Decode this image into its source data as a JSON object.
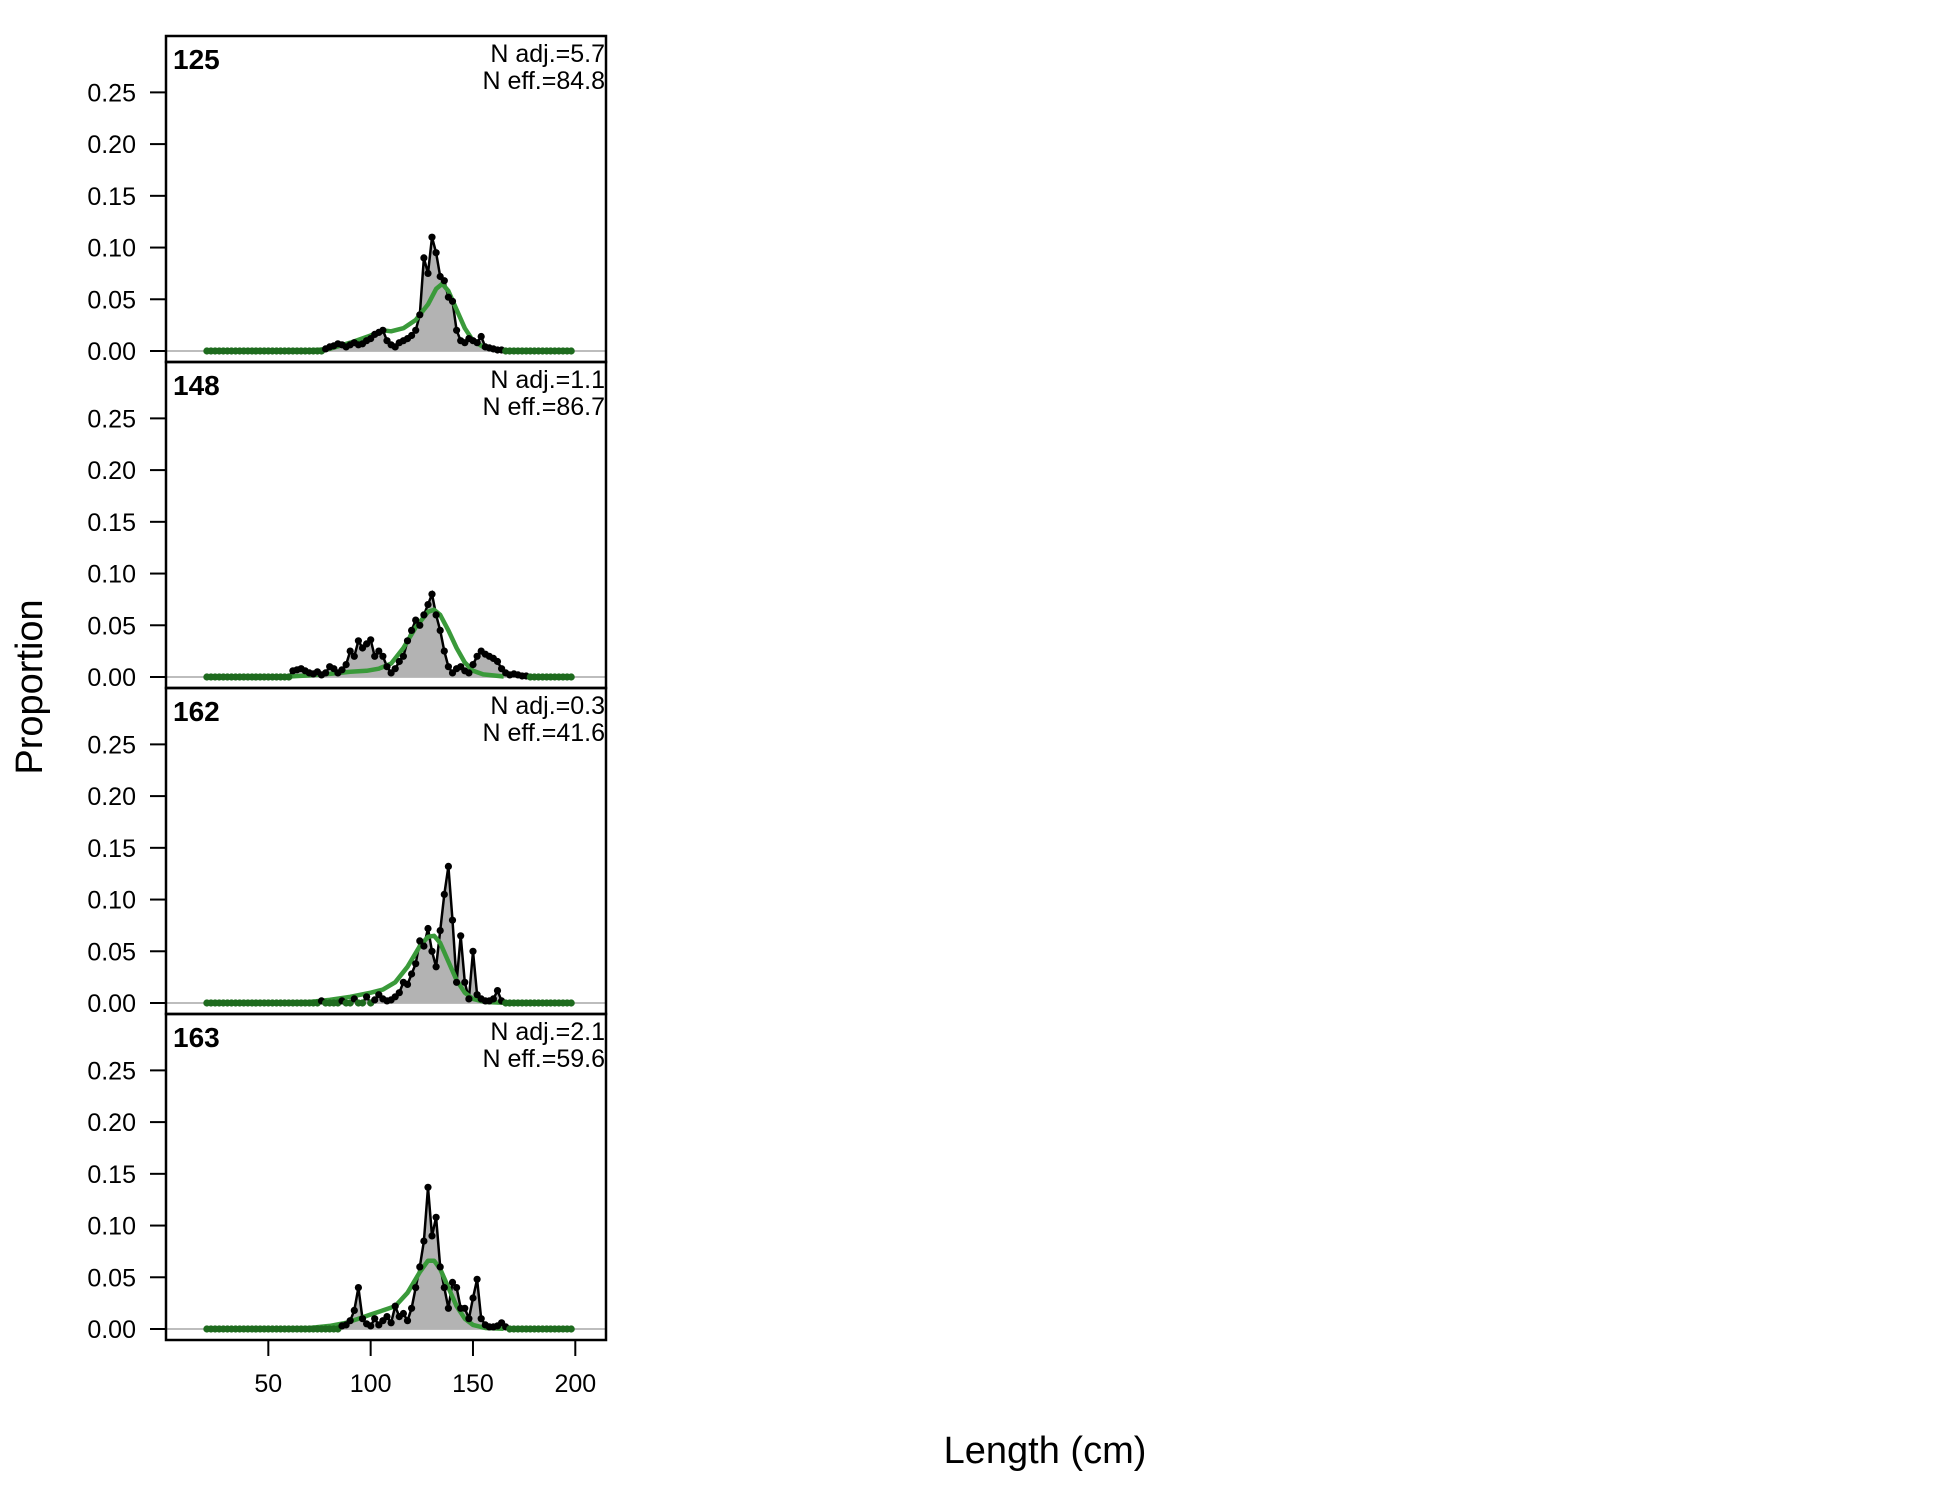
{
  "chart_data": {
    "type": "area",
    "xlabel": "Length (cm)",
    "ylabel": "Proportion",
    "xlim": [
      0,
      215
    ],
    "ylim": [
      0,
      0.29
    ],
    "x_ticks": [
      50,
      100,
      150,
      200
    ],
    "x_tick_labels": [
      "50",
      "100",
      "150",
      "200"
    ],
    "y_ticks": [
      0,
      0.05,
      0.1,
      0.15,
      0.2,
      0.25
    ],
    "y_tick_labels": [
      "0.00",
      "0.05",
      "0.10",
      "0.15",
      "0.20",
      "0.25"
    ],
    "colors": {
      "observed_line": "#000000",
      "observed_fill": "#b3b3b3",
      "expected_line": "#3a9a3a",
      "zero_line": "#bdbdbd",
      "zero_points": "#1e6b1e"
    },
    "length_bins": {
      "start": 20,
      "end": 198,
      "step": 2
    },
    "panels": [
      {
        "label": "125",
        "n_adj": "N adj.=5.7",
        "n_eff": "N eff.=84.8",
        "observed": [
          [
            78,
            0.002
          ],
          [
            80,
            0.004
          ],
          [
            82,
            0.005
          ],
          [
            84,
            0.007
          ],
          [
            86,
            0.006
          ],
          [
            88,
            0.004
          ],
          [
            90,
            0.006
          ],
          [
            92,
            0.008
          ],
          [
            94,
            0.006
          ],
          [
            96,
            0.007
          ],
          [
            98,
            0.01
          ],
          [
            100,
            0.012
          ],
          [
            102,
            0.016
          ],
          [
            104,
            0.018
          ],
          [
            106,
            0.02
          ],
          [
            108,
            0.01
          ],
          [
            110,
            0.006
          ],
          [
            112,
            0.004
          ],
          [
            114,
            0.008
          ],
          [
            116,
            0.01
          ],
          [
            118,
            0.012
          ],
          [
            120,
            0.015
          ],
          [
            122,
            0.02
          ],
          [
            124,
            0.035
          ],
          [
            126,
            0.09
          ],
          [
            128,
            0.075
          ],
          [
            130,
            0.11
          ],
          [
            132,
            0.095
          ],
          [
            134,
            0.072
          ],
          [
            136,
            0.068
          ],
          [
            138,
            0.052
          ],
          [
            140,
            0.048
          ],
          [
            142,
            0.02
          ],
          [
            144,
            0.01
          ],
          [
            146,
            0.008
          ],
          [
            148,
            0.012
          ],
          [
            150,
            0.01
          ],
          [
            152,
            0.008
          ],
          [
            154,
            0.014
          ],
          [
            156,
            0.004
          ],
          [
            158,
            0.003
          ],
          [
            160,
            0.002
          ],
          [
            162,
            0.001
          ],
          [
            164,
            0.001
          ]
        ],
        "expected": [
          [
            70,
            0.0005
          ],
          [
            80,
            0.002
          ],
          [
            90,
            0.008
          ],
          [
            100,
            0.015
          ],
          [
            106,
            0.02
          ],
          [
            110,
            0.019
          ],
          [
            116,
            0.022
          ],
          [
            122,
            0.03
          ],
          [
            128,
            0.045
          ],
          [
            132,
            0.06
          ],
          [
            135,
            0.065
          ],
          [
            138,
            0.058
          ],
          [
            142,
            0.04
          ],
          [
            146,
            0.022
          ],
          [
            150,
            0.01
          ],
          [
            155,
            0.004
          ],
          [
            160,
            0.0015
          ],
          [
            170,
            0.0003
          ]
        ]
      },
      {
        "label": "148",
        "n_adj": "N adj.=1.1",
        "n_eff": "N eff.=86.7",
        "observed": [
          [
            62,
            0.006
          ],
          [
            64,
            0.007
          ],
          [
            66,
            0.008
          ],
          [
            68,
            0.006
          ],
          [
            70,
            0.004
          ],
          [
            72,
            0.003
          ],
          [
            74,
            0.005
          ],
          [
            76,
            0.002
          ],
          [
            78,
            0.004
          ],
          [
            80,
            0.01
          ],
          [
            82,
            0.008
          ],
          [
            84,
            0.004
          ],
          [
            86,
            0.007
          ],
          [
            88,
            0.012
          ],
          [
            90,
            0.025
          ],
          [
            92,
            0.02
          ],
          [
            94,
            0.035
          ],
          [
            96,
            0.028
          ],
          [
            98,
            0.032
          ],
          [
            100,
            0.036
          ],
          [
            102,
            0.02
          ],
          [
            104,
            0.025
          ],
          [
            106,
            0.02
          ],
          [
            108,
            0.01
          ],
          [
            110,
            0.004
          ],
          [
            112,
            0.008
          ],
          [
            114,
            0.015
          ],
          [
            116,
            0.02
          ],
          [
            118,
            0.035
          ],
          [
            120,
            0.045
          ],
          [
            122,
            0.055
          ],
          [
            124,
            0.05
          ],
          [
            126,
            0.06
          ],
          [
            128,
            0.07
          ],
          [
            130,
            0.08
          ],
          [
            132,
            0.06
          ],
          [
            134,
            0.045
          ],
          [
            136,
            0.025
          ],
          [
            138,
            0.01
          ],
          [
            140,
            0.004
          ],
          [
            142,
            0.008
          ],
          [
            144,
            0.01
          ],
          [
            146,
            0.006
          ],
          [
            148,
            0.004
          ],
          [
            150,
            0.012
          ],
          [
            152,
            0.02
          ],
          [
            154,
            0.025
          ],
          [
            156,
            0.022
          ],
          [
            158,
            0.02
          ],
          [
            160,
            0.018
          ],
          [
            162,
            0.015
          ],
          [
            164,
            0.008
          ],
          [
            166,
            0.004
          ],
          [
            168,
            0.002
          ],
          [
            170,
            0.003
          ],
          [
            172,
            0.002
          ],
          [
            174,
            0.001
          ],
          [
            176,
            0.001
          ]
        ],
        "expected": [
          [
            60,
            0.0005
          ],
          [
            70,
            0.0015
          ],
          [
            80,
            0.003
          ],
          [
            90,
            0.005
          ],
          [
            98,
            0.006
          ],
          [
            104,
            0.008
          ],
          [
            110,
            0.013
          ],
          [
            116,
            0.028
          ],
          [
            122,
            0.048
          ],
          [
            128,
            0.063
          ],
          [
            131,
            0.065
          ],
          [
            134,
            0.06
          ],
          [
            138,
            0.045
          ],
          [
            142,
            0.028
          ],
          [
            146,
            0.014
          ],
          [
            150,
            0.006
          ],
          [
            155,
            0.0025
          ],
          [
            165,
            0.0005
          ]
        ]
      },
      {
        "label": "162",
        "n_adj": "N adj.=0.3",
        "n_eff": "N eff.=41.6",
        "observed": [
          [
            76,
            0.002
          ],
          [
            86,
            0.002
          ],
          [
            92,
            0.004
          ],
          [
            98,
            0.006
          ],
          [
            102,
            0.003
          ],
          [
            104,
            0.008
          ],
          [
            106,
            0.004
          ],
          [
            108,
            0.002
          ],
          [
            110,
            0.003
          ],
          [
            112,
            0.006
          ],
          [
            114,
            0.01
          ],
          [
            116,
            0.02
          ],
          [
            118,
            0.018
          ],
          [
            120,
            0.028
          ],
          [
            122,
            0.038
          ],
          [
            124,
            0.06
          ],
          [
            126,
            0.055
          ],
          [
            128,
            0.072
          ],
          [
            130,
            0.05
          ],
          [
            132,
            0.035
          ],
          [
            134,
            0.07
          ],
          [
            136,
            0.105
          ],
          [
            138,
            0.132
          ],
          [
            140,
            0.08
          ],
          [
            142,
            0.02
          ],
          [
            144,
            0.065
          ],
          [
            146,
            0.02
          ],
          [
            148,
            0.004
          ],
          [
            150,
            0.05
          ],
          [
            152,
            0.008
          ],
          [
            154,
            0.004
          ],
          [
            156,
            0.002
          ],
          [
            158,
            0.002
          ],
          [
            160,
            0.004
          ],
          [
            162,
            0.012
          ],
          [
            164,
            0.002
          ]
        ],
        "expected": [
          [
            60,
            0.0005
          ],
          [
            70,
            0.001
          ],
          [
            80,
            0.003
          ],
          [
            90,
            0.006
          ],
          [
            100,
            0.01
          ],
          [
            106,
            0.013
          ],
          [
            112,
            0.02
          ],
          [
            118,
            0.035
          ],
          [
            124,
            0.055
          ],
          [
            128,
            0.064
          ],
          [
            131,
            0.065
          ],
          [
            134,
            0.058
          ],
          [
            138,
            0.04
          ],
          [
            142,
            0.022
          ],
          [
            146,
            0.01
          ],
          [
            150,
            0.004
          ],
          [
            156,
            0.001
          ],
          [
            165,
            0.0002
          ]
        ]
      },
      {
        "label": "163",
        "n_adj": "N adj.=2.1",
        "n_eff": "N eff.=59.6",
        "observed": [
          [
            86,
            0.003
          ],
          [
            88,
            0.004
          ],
          [
            90,
            0.008
          ],
          [
            92,
            0.018
          ],
          [
            94,
            0.04
          ],
          [
            96,
            0.01
          ],
          [
            98,
            0.005
          ],
          [
            100,
            0.003
          ],
          [
            102,
            0.01
          ],
          [
            104,
            0.004
          ],
          [
            106,
            0.008
          ],
          [
            108,
            0.012
          ],
          [
            110,
            0.006
          ],
          [
            112,
            0.022
          ],
          [
            114,
            0.012
          ],
          [
            116,
            0.015
          ],
          [
            118,
            0.008
          ],
          [
            120,
            0.02
          ],
          [
            122,
            0.04
          ],
          [
            124,
            0.06
          ],
          [
            126,
            0.085
          ],
          [
            128,
            0.137
          ],
          [
            130,
            0.09
          ],
          [
            132,
            0.108
          ],
          [
            134,
            0.06
          ],
          [
            136,
            0.04
          ],
          [
            138,
            0.02
          ],
          [
            140,
            0.045
          ],
          [
            142,
            0.04
          ],
          [
            144,
            0.02
          ],
          [
            146,
            0.02
          ],
          [
            148,
            0.01
          ],
          [
            150,
            0.03
          ],
          [
            152,
            0.048
          ],
          [
            154,
            0.01
          ],
          [
            156,
            0.004
          ],
          [
            158,
            0.002
          ],
          [
            160,
            0.002
          ],
          [
            162,
            0.003
          ],
          [
            164,
            0.006
          ],
          [
            166,
            0.002
          ]
        ],
        "expected": [
          [
            60,
            0.0005
          ],
          [
            70,
            0.001
          ],
          [
            80,
            0.003
          ],
          [
            88,
            0.006
          ],
          [
            94,
            0.01
          ],
          [
            100,
            0.014
          ],
          [
            106,
            0.018
          ],
          [
            112,
            0.022
          ],
          [
            118,
            0.035
          ],
          [
            124,
            0.055
          ],
          [
            128,
            0.066
          ],
          [
            131,
            0.066
          ],
          [
            134,
            0.058
          ],
          [
            138,
            0.04
          ],
          [
            142,
            0.022
          ],
          [
            146,
            0.01
          ],
          [
            150,
            0.004
          ],
          [
            156,
            0.001
          ],
          [
            165,
            0.0002
          ]
        ]
      }
    ]
  }
}
